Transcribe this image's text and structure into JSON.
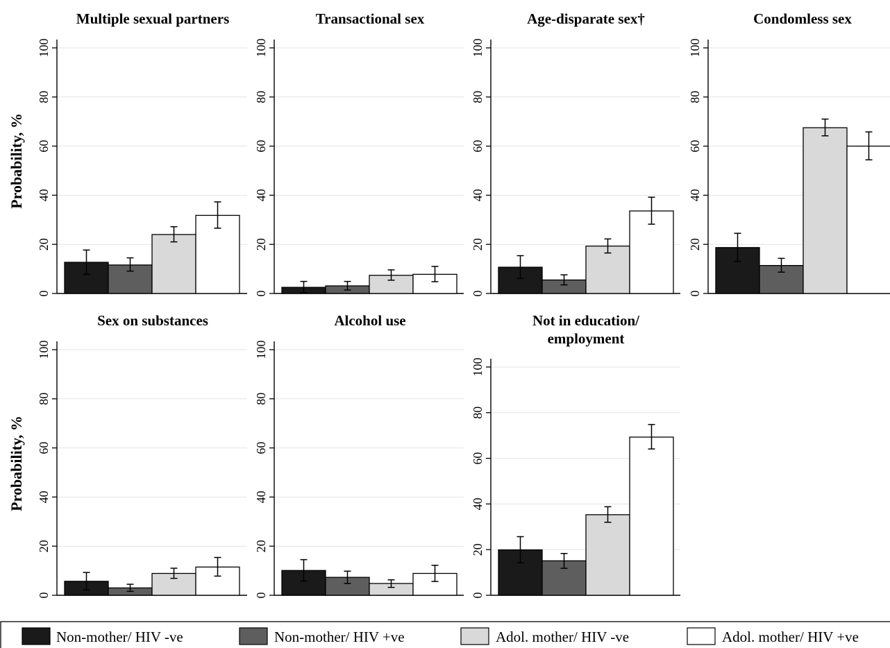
{
  "figure": {
    "ylabel": "Probability, %",
    "legend": [
      {
        "label": "Non-mother/ HIV -ve",
        "color": "#1a1a1a"
      },
      {
        "label": "Non-mother/ HIV +ve",
        "color": "#5e5e5e"
      },
      {
        "label": "Adol. mother/ HIV -ve",
        "color": "#d9d9d9"
      },
      {
        "label": "Adol. mother/ HIV +ve",
        "color": "#ffffff"
      }
    ]
  },
  "chart_data": [
    {
      "type": "bar",
      "title": [
        "Multiple sexual partners"
      ],
      "ylim": [
        0,
        100
      ],
      "yticks": [
        0,
        20,
        40,
        60,
        80,
        100
      ],
      "grid": true,
      "categories": [
        "Non-mother/ HIV -ve",
        "Non-mother/ HIV +ve",
        "Adol. mother/ HIV -ve",
        "Adol. mother/ HIV +ve"
      ],
      "values": [
        12.7,
        11.6,
        24.0,
        31.8
      ],
      "ci_low": [
        7.8,
        9.1,
        21.0,
        26.6
      ],
      "ci_high": [
        17.7,
        14.5,
        27.2,
        37.3
      ]
    },
    {
      "type": "bar",
      "title": [
        "Transactional sex"
      ],
      "ylim": [
        0,
        100
      ],
      "yticks": [
        0,
        20,
        40,
        60,
        80,
        100
      ],
      "grid": true,
      "categories": [
        "Non-mother/ HIV -ve",
        "Non-mother/ HIV +ve",
        "Adol. mother/ HIV -ve",
        "Adol. mother/ HIV +ve"
      ],
      "values": [
        2.5,
        3.1,
        7.4,
        7.8
      ],
      "ci_low": [
        0.3,
        1.4,
        5.4,
        4.8
      ],
      "ci_high": [
        4.9,
        4.9,
        9.6,
        11.0
      ]
    },
    {
      "type": "bar",
      "title": [
        "Age-disparate sex†"
      ],
      "ylim": [
        0,
        100
      ],
      "yticks": [
        0,
        20,
        40,
        60,
        80,
        100
      ],
      "grid": true,
      "categories": [
        "Non-mother/ HIV -ve",
        "Non-mother/ HIV +ve",
        "Adol. mother/ HIV -ve",
        "Adol. mother/ HIV +ve"
      ],
      "values": [
        10.7,
        5.5,
        19.3,
        33.6
      ],
      "ci_low": [
        6.1,
        3.5,
        16.5,
        28.2
      ],
      "ci_high": [
        15.4,
        7.6,
        22.2,
        39.2
      ]
    },
    {
      "type": "bar",
      "title": [
        "Condomless sex"
      ],
      "ylim": [
        0,
        100
      ],
      "yticks": [
        0,
        20,
        40,
        60,
        80,
        100
      ],
      "grid": true,
      "categories": [
        "Non-mother/ HIV -ve",
        "Non-mother/ HIV +ve",
        "Adol. mother/ HIV -ve",
        "Adol. mother/ HIV +ve"
      ],
      "values": [
        18.7,
        11.4,
        67.5,
        60.0
      ],
      "ci_low": [
        13.0,
        8.7,
        64.2,
        54.4
      ],
      "ci_high": [
        24.5,
        14.3,
        71.0,
        65.8
      ]
    },
    {
      "type": "bar",
      "title": [
        "Sex on substances"
      ],
      "ylim": [
        0,
        100
      ],
      "yticks": [
        0,
        20,
        40,
        60,
        80,
        100
      ],
      "grid": true,
      "categories": [
        "Non-mother/ HIV -ve",
        "Non-mother/ HIV +ve",
        "Adol. mother/ HIV -ve",
        "Adol. mother/ HIV +ve"
      ],
      "values": [
        5.7,
        3.0,
        8.9,
        11.5
      ],
      "ci_low": [
        2.2,
        1.6,
        6.9,
        7.8
      ],
      "ci_high": [
        9.3,
        4.5,
        11.0,
        15.4
      ]
    },
    {
      "type": "bar",
      "title": [
        "Alcohol use"
      ],
      "ylim": [
        0,
        100
      ],
      "yticks": [
        0,
        20,
        40,
        60,
        80,
        100
      ],
      "grid": true,
      "categories": [
        "Non-mother/ HIV -ve",
        "Non-mother/ HIV +ve",
        "Adol. mother/ HIV -ve",
        "Adol. mother/ HIV +ve"
      ],
      "values": [
        10.1,
        7.3,
        4.8,
        8.9
      ],
      "ci_low": [
        5.8,
        4.8,
        3.2,
        5.6
      ],
      "ci_high": [
        14.5,
        9.8,
        6.3,
        12.2
      ]
    },
    {
      "type": "bar",
      "title": [
        "Not in education/",
        "employment"
      ],
      "ylim": [
        0,
        100
      ],
      "yticks": [
        0,
        20,
        40,
        60,
        80,
        100
      ],
      "grid": true,
      "categories": [
        "Non-mother/ HIV -ve",
        "Non-mother/ HIV +ve",
        "Adol. mother/ HIV -ve",
        "Adol. mother/ HIV +ve"
      ],
      "values": [
        19.9,
        15.1,
        35.3,
        69.3
      ],
      "ci_low": [
        14.2,
        11.8,
        32.0,
        64.1
      ],
      "ci_high": [
        25.7,
        18.3,
        38.8,
        74.8
      ]
    }
  ]
}
